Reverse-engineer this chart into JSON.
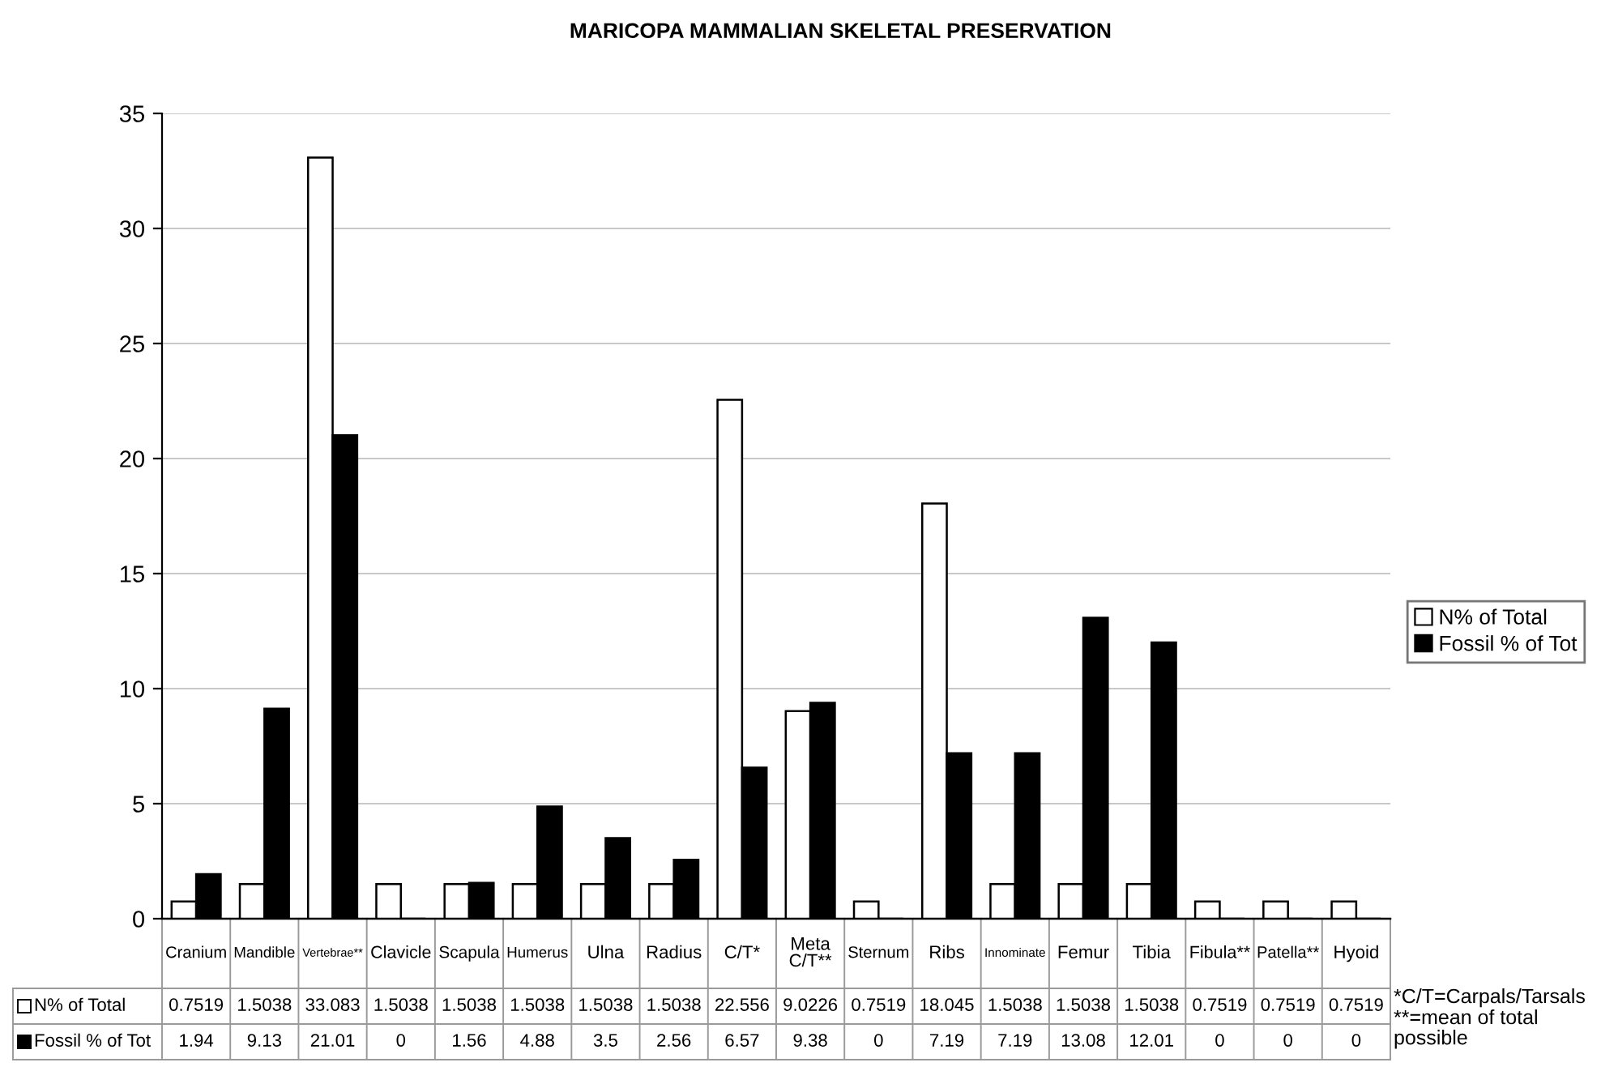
{
  "chart_data": {
    "type": "bar",
    "title": "MARICOPA MAMMALIAN SKELETAL PRESERVATION",
    "categories": [
      "Cranium",
      "Mandible",
      "Vertebrae**",
      "Clavicle",
      "Scapula",
      "Humerus",
      "Ulna",
      "Radius",
      "C/T*",
      "Meta C/T**",
      "Sternum",
      "Ribs",
      "Innominate",
      "Femur",
      "Tibia",
      "Fibula**",
      "Patella**",
      "Hyoid"
    ],
    "series": [
      {
        "name": "N% of Total",
        "color": "#ffffff",
        "values": [
          0.7519,
          1.5038,
          33.083,
          1.5038,
          1.5038,
          1.5038,
          1.5038,
          1.5038,
          22.556,
          9.0226,
          0.7519,
          18.045,
          1.5038,
          1.5038,
          1.5038,
          0.7519,
          0.7519,
          0.7519
        ]
      },
      {
        "name": "Fossil % of Tot",
        "color": "#000000",
        "values": [
          1.94,
          9.13,
          21.01,
          0,
          1.56,
          4.88,
          3.5,
          2.56,
          6.57,
          9.38,
          0,
          7.19,
          7.19,
          13.08,
          12.01,
          0,
          0,
          0
        ]
      }
    ],
    "ylim": [
      0,
      35
    ],
    "yticks": [
      0,
      5,
      10,
      15,
      20,
      25,
      30,
      35
    ],
    "grid": "y",
    "legend": "right",
    "data_labels": true,
    "annotations": [
      "*C/T=Carpals/Tarsals",
      "**=mean of total possible"
    ]
  }
}
